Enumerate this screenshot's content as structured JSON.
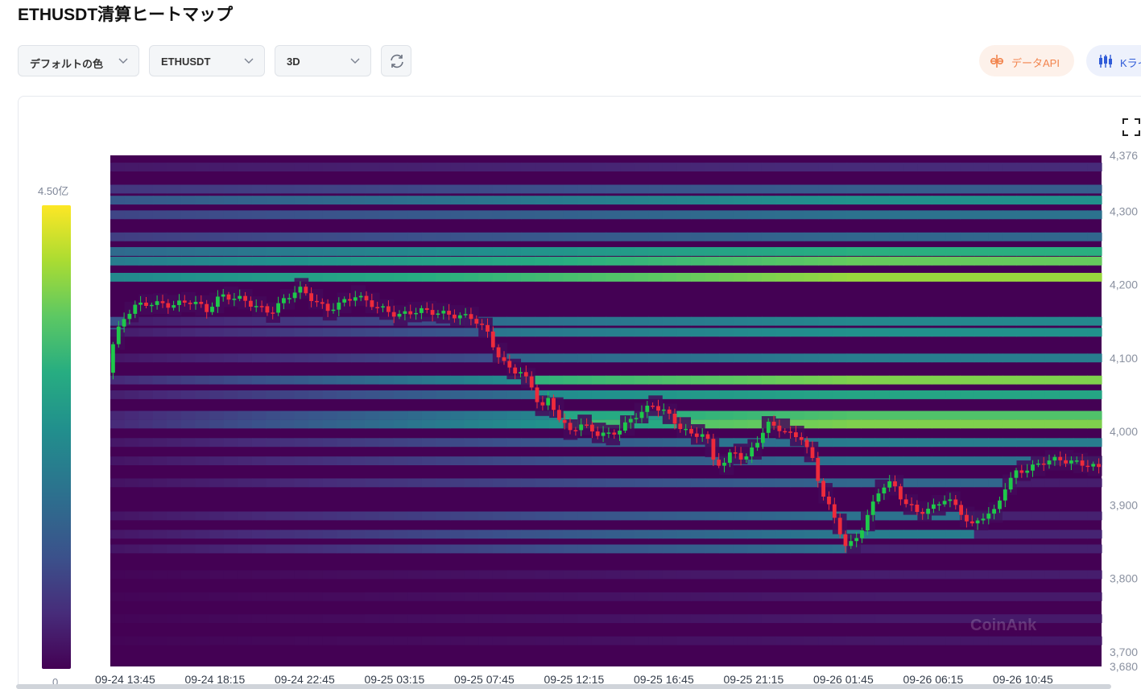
{
  "page": {
    "title": "ETHUSDT清算ヒートマップ"
  },
  "toolbar": {
    "color_select": "デフォルトの色",
    "symbol_select": "ETHUSDT",
    "range_select": "3D",
    "refresh_icon": "refresh-icon",
    "api_button": "データAPI",
    "kline_button": "Kライ"
  },
  "colors": {
    "api_accent": "#f2844d",
    "kline_accent": "#2f5bd8",
    "candle_up": "#1ec84a",
    "candle_down": "#ee2b3b",
    "heat_low": "#440154",
    "heat_high": "#fde725"
  },
  "colorbar": {
    "max_label": "4.50亿",
    "min_label": "0"
  },
  "watermark": "CoinAnk",
  "chart_data": {
    "type": "heatmap",
    "title": "ETHUSDT清算ヒートマップ",
    "x_labels": [
      "09-24 13:45",
      "09-24 18:15",
      "09-24 22:45",
      "09-25 03:15",
      "09-25 07:45",
      "09-25 12:15",
      "09-25 16:45",
      "09-25 21:15",
      "09-26 01:45",
      "09-26 06:15",
      "09-26 10:45"
    ],
    "y_ticks": [
      "4,376",
      "4,300",
      "4,200",
      "4,100",
      "4,000",
      "3,900",
      "3,800",
      "3,700",
      "3,680"
    ],
    "ylim": [
      3680,
      4376
    ],
    "grid": false,
    "colorscale": "viridis",
    "color_range": [
      "0",
      "4.50亿"
    ],
    "liquidation_levels": [
      {
        "price": 4360,
        "intensity": 0.15
      },
      {
        "price": 4330,
        "intensity": 0.35
      },
      {
        "price": 4315,
        "intensity": 0.6
      },
      {
        "price": 4295,
        "intensity": 0.45
      },
      {
        "price": 4265,
        "intensity": 0.4
      },
      {
        "price": 4245,
        "intensity": 0.75
      },
      {
        "price": 4232,
        "intensity": 0.9
      },
      {
        "price": 4210,
        "intensity": 1.0
      },
      {
        "price": 4150,
        "intensity": 0.55
      },
      {
        "price": 4135,
        "intensity": 0.6
      },
      {
        "price": 4100,
        "intensity": 0.5
      },
      {
        "price": 4070,
        "intensity": 0.95
      },
      {
        "price": 4050,
        "intensity": 0.7
      },
      {
        "price": 4022,
        "intensity": 0.85
      },
      {
        "price": 4010,
        "intensity": 0.95
      },
      {
        "price": 3985,
        "intensity": 0.5
      },
      {
        "price": 3960,
        "intensity": 0.45
      },
      {
        "price": 3930,
        "intensity": 0.4
      },
      {
        "price": 3885,
        "intensity": 0.45
      },
      {
        "price": 3860,
        "intensity": 0.5
      },
      {
        "price": 3840,
        "intensity": 0.45
      },
      {
        "price": 3805,
        "intensity": 0.4
      },
      {
        "price": 3775,
        "intensity": 0.35
      },
      {
        "price": 3745,
        "intensity": 0.35
      },
      {
        "price": 3715,
        "intensity": 0.3
      }
    ],
    "price_path": [
      {
        "t": 0,
        "price": 4080
      },
      {
        "t": 4,
        "price": 4120
      },
      {
        "t": 10,
        "price": 4150
      },
      {
        "t": 18,
        "price": 4170
      },
      {
        "t": 30,
        "price": 4175
      },
      {
        "t": 45,
        "price": 4172
      },
      {
        "t": 60,
        "price": 4178
      },
      {
        "t": 70,
        "price": 4165
      },
      {
        "t": 80,
        "price": 4185
      },
      {
        "t": 95,
        "price": 4180
      },
      {
        "t": 105,
        "price": 4170
      },
      {
        "t": 115,
        "price": 4162
      },
      {
        "t": 125,
        "price": 4180
      },
      {
        "t": 135,
        "price": 4195
      },
      {
        "t": 145,
        "price": 4180
      },
      {
        "t": 155,
        "price": 4165
      },
      {
        "t": 165,
        "price": 4175
      },
      {
        "t": 175,
        "price": 4185
      },
      {
        "t": 190,
        "price": 4170
      },
      {
        "t": 205,
        "price": 4158
      },
      {
        "t": 220,
        "price": 4165
      },
      {
        "t": 232,
        "price": 4162
      },
      {
        "t": 245,
        "price": 4158
      },
      {
        "t": 258,
        "price": 4155
      },
      {
        "t": 268,
        "price": 4135
      },
      {
        "t": 278,
        "price": 4095
      },
      {
        "t": 285,
        "price": 4085
      },
      {
        "t": 292,
        "price": 4080
      },
      {
        "t": 300,
        "price": 4060
      },
      {
        "t": 306,
        "price": 4030
      },
      {
        "t": 312,
        "price": 4045
      },
      {
        "t": 318,
        "price": 4020
      },
      {
        "t": 326,
        "price": 4000
      },
      {
        "t": 334,
        "price": 4010
      },
      {
        "t": 345,
        "price": 3998
      },
      {
        "t": 355,
        "price": 3995
      },
      {
        "t": 365,
        "price": 4008
      },
      {
        "t": 375,
        "price": 4025
      },
      {
        "t": 385,
        "price": 4035
      },
      {
        "t": 392,
        "price": 4030
      },
      {
        "t": 402,
        "price": 4010
      },
      {
        "t": 412,
        "price": 3995
      },
      {
        "t": 422,
        "price": 3998
      },
      {
        "t": 428,
        "price": 3960
      },
      {
        "t": 435,
        "price": 3955
      },
      {
        "t": 442,
        "price": 3975
      },
      {
        "t": 450,
        "price": 3960
      },
      {
        "t": 458,
        "price": 3985
      },
      {
        "t": 466,
        "price": 4010
      },
      {
        "t": 474,
        "price": 4005
      },
      {
        "t": 482,
        "price": 3995
      },
      {
        "t": 490,
        "price": 3992
      },
      {
        "t": 498,
        "price": 3960
      },
      {
        "t": 504,
        "price": 3920
      },
      {
        "t": 510,
        "price": 3895
      },
      {
        "t": 516,
        "price": 3870
      },
      {
        "t": 522,
        "price": 3840
      },
      {
        "t": 530,
        "price": 3858
      },
      {
        "t": 538,
        "price": 3890
      },
      {
        "t": 546,
        "price": 3925
      },
      {
        "t": 554,
        "price": 3930
      },
      {
        "t": 562,
        "price": 3905
      },
      {
        "t": 572,
        "price": 3890
      },
      {
        "t": 582,
        "price": 3895
      },
      {
        "t": 592,
        "price": 3910
      },
      {
        "t": 602,
        "price": 3892
      },
      {
        "t": 610,
        "price": 3870
      },
      {
        "t": 618,
        "price": 3885
      },
      {
        "t": 626,
        "price": 3890
      },
      {
        "t": 634,
        "price": 3925
      },
      {
        "t": 642,
        "price": 3945
      },
      {
        "t": 652,
        "price": 3950
      },
      {
        "t": 662,
        "price": 3960
      },
      {
        "t": 672,
        "price": 3962
      },
      {
        "t": 682,
        "price": 3958
      },
      {
        "t": 692,
        "price": 3955
      },
      {
        "t": 700,
        "price": 3950
      }
    ]
  }
}
